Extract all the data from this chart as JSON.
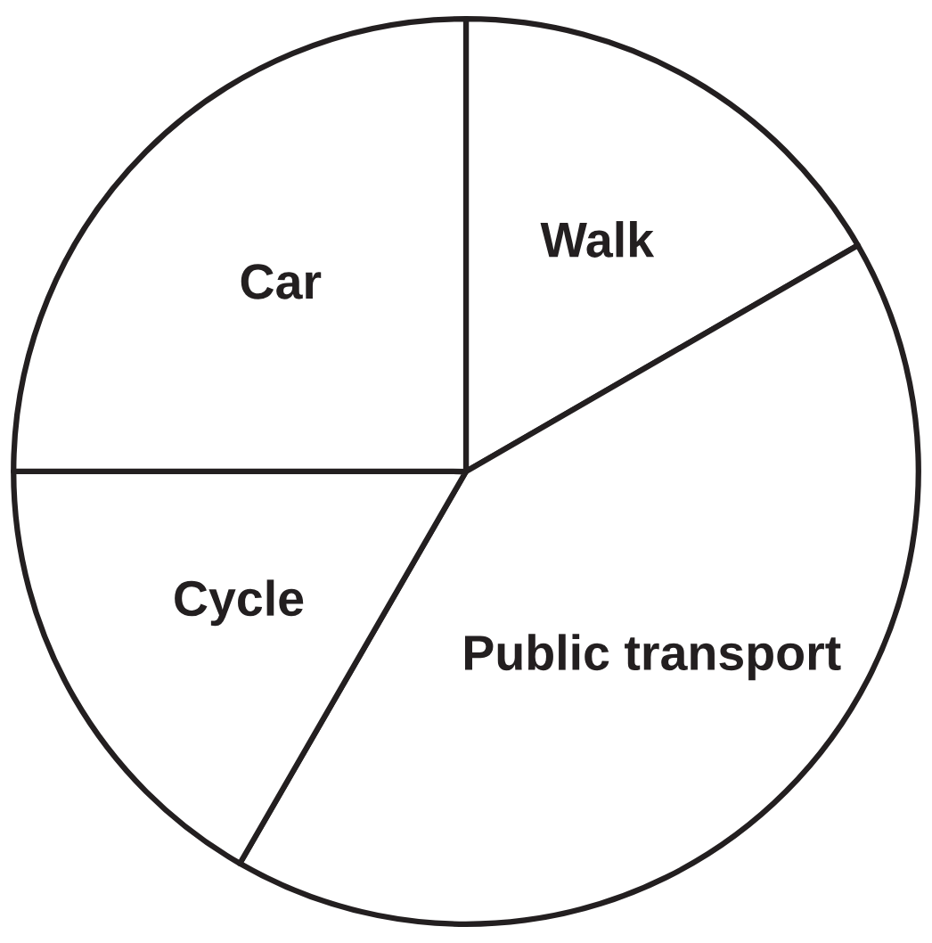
{
  "chart_data": {
    "type": "pie",
    "categories": [
      "Walk",
      "Public transport",
      "Cycle",
      "Car"
    ],
    "values": [
      16.67,
      41.66,
      16.67,
      25
    ],
    "colors": [
      "#ffffff",
      "#ffffff",
      "#ffffff",
      "#ffffff"
    ],
    "legend": false
  }
}
